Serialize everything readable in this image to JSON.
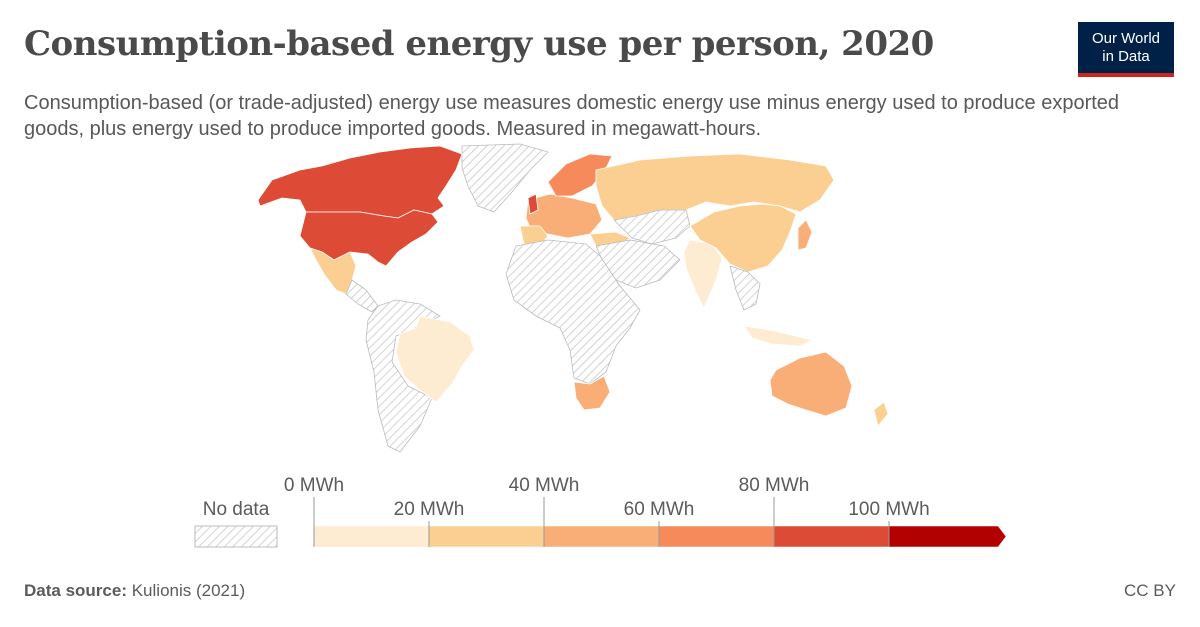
{
  "header": {
    "title": "Consumption-based energy use per person, 2020",
    "subtitle": "Consumption-based (or trade-adjusted) energy use measures domestic energy use minus energy used to produce exported goods, plus energy used to produce imported goods. Measured in megawatt-hours.",
    "logo_line1": "Our World",
    "logo_line2": "in Data"
  },
  "legend": {
    "no_data_label": "No data",
    "ticks_top": [
      "0 MWh",
      "40 MWh",
      "80 MWh"
    ],
    "ticks_bottom": [
      "20 MWh",
      "60 MWh",
      "100 MWh"
    ],
    "bins": [
      {
        "range": [
          0,
          20
        ],
        "color": "#fdebd2"
      },
      {
        "range": [
          20,
          40
        ],
        "color": "#fbcf92"
      },
      {
        "range": [
          40,
          60
        ],
        "color": "#f9ae78"
      },
      {
        "range": [
          60,
          80
        ],
        "color": "#f68a5b"
      },
      {
        "range": [
          80,
          100
        ],
        "color": "#dd4a35"
      },
      {
        "range": [
          100,
          null
        ],
        "color": "#b30000"
      }
    ]
  },
  "map_colors": {
    "no_data_hatch": "#d0d0d0",
    "border": "#ffffff"
  },
  "footer": {
    "source_label": "Data source:",
    "source_text": "Kulionis (2021)",
    "license": "CC BY"
  }
}
